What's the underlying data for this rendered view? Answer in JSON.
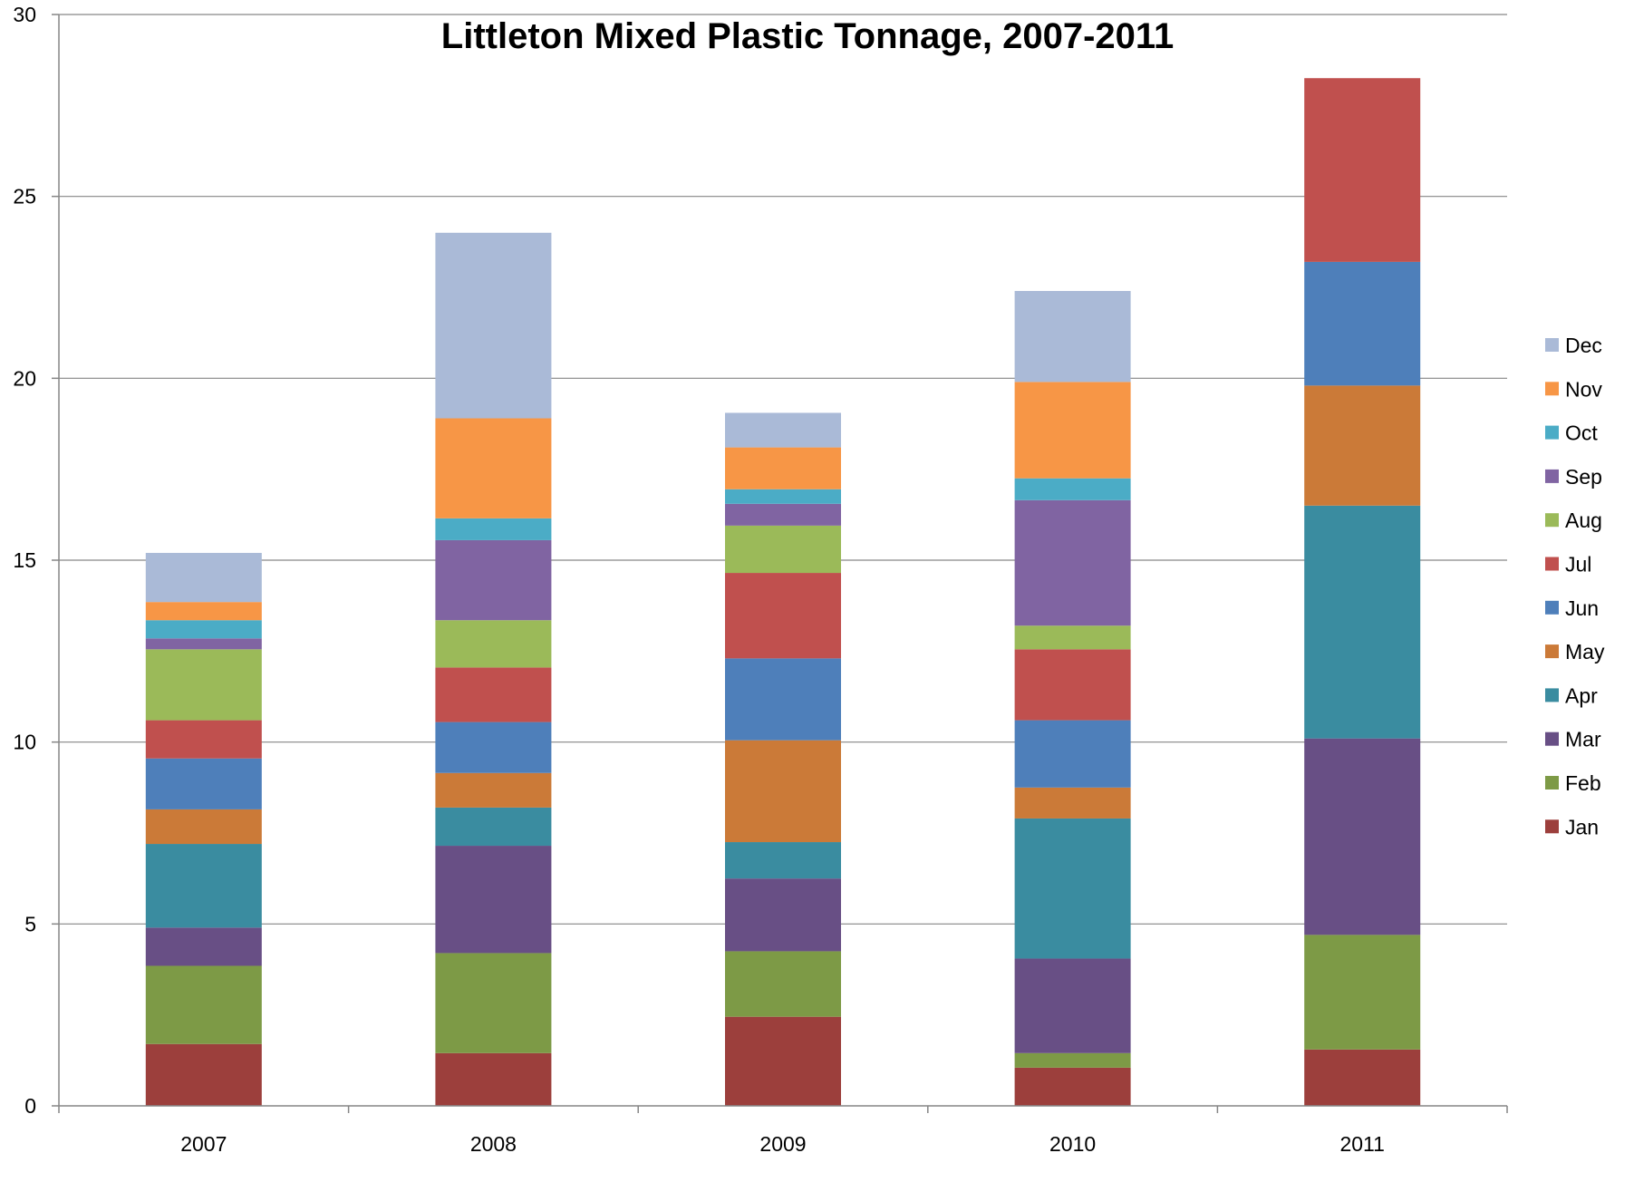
{
  "chart_data": {
    "type": "bar",
    "stacked": true,
    "title": "Littleton Mixed Plastic Tonnage, 2007-2011",
    "xlabel": "",
    "ylabel": "",
    "ylim": [
      0,
      30
    ],
    "yticks": [
      "0",
      "5",
      "10",
      "15",
      "20",
      "25",
      "30"
    ],
    "grid": true,
    "legend_position": "right",
    "categories": [
      "2007",
      "2008",
      "2009",
      "2010",
      "2011"
    ],
    "series": [
      {
        "name": "Jan",
        "color": "#9C3F3C",
        "values": [
          1.7,
          1.45,
          2.45,
          1.05,
          1.55
        ]
      },
      {
        "name": "Feb",
        "color": "#7D9A46",
        "values": [
          2.15,
          2.75,
          1.8,
          0.4,
          3.15
        ]
      },
      {
        "name": "Mar",
        "color": "#684F85",
        "values": [
          1.05,
          2.95,
          2.0,
          2.6,
          5.4
        ]
      },
      {
        "name": "Apr",
        "color": "#3A8CA0",
        "values": [
          2.3,
          1.05,
          1.0,
          3.85,
          6.4
        ]
      },
      {
        "name": "May",
        "color": "#CB7A38",
        "values": [
          0.95,
          0.95,
          2.8,
          0.85,
          3.3
        ]
      },
      {
        "name": "Jun",
        "color": "#4E7FBA",
        "values": [
          1.4,
          1.4,
          2.25,
          1.85,
          3.4
        ]
      },
      {
        "name": "Jul",
        "color": "#C0504E",
        "values": [
          1.05,
          1.5,
          2.35,
          1.95,
          5.05
        ]
      },
      {
        "name": "Aug",
        "color": "#9BBA59",
        "values": [
          1.95,
          1.3,
          1.3,
          0.65,
          0
        ]
      },
      {
        "name": "Sep",
        "color": "#8064A2",
        "values": [
          0.3,
          2.2,
          0.6,
          3.45,
          0
        ]
      },
      {
        "name": "Oct",
        "color": "#4BACC6",
        "values": [
          0.5,
          0.6,
          0.4,
          0.6,
          0
        ]
      },
      {
        "name": "Nov",
        "color": "#F79646",
        "values": [
          0.5,
          2.75,
          1.15,
          2.65,
          0
        ]
      },
      {
        "name": "Dec",
        "color": "#AABAD7",
        "values": [
          1.35,
          5.1,
          0.95,
          2.5,
          0
        ]
      }
    ]
  }
}
